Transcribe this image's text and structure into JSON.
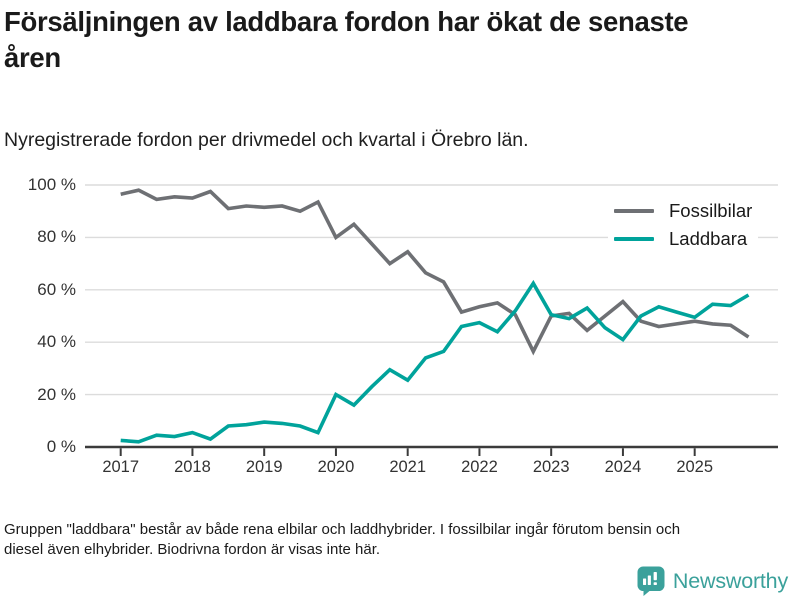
{
  "header": {
    "title": "Försäljningen av laddbara fordon har ökat de senaste åren",
    "subtitle": "Nyregistrerade fordon per drivmedel och kvartal i Örebro län."
  },
  "legend": [
    {
      "label": "Fossilbilar",
      "color": "#6e7074"
    },
    {
      "label": "Laddbara",
      "color": "#00a39b"
    }
  ],
  "footer": {
    "note": "Gruppen \"laddbara\" består av både rena elbilar och laddhybrider. I fossilbilar ingår förutom bensin och diesel även elhybrider. Biodrivna fordon är visas inte här."
  },
  "branding": {
    "name": "Newsworthy",
    "color": "#3ba19b",
    "logo_icon": "bar-chart-speech-bubble"
  },
  "chart_data": {
    "type": "line",
    "title": "Nyregistrerade fordon per drivmedel och kvartal i Örebro län",
    "x_unit": "quarter",
    "x": [
      "2017 Q1",
      "2017 Q2",
      "2017 Q3",
      "2017 Q4",
      "2018 Q1",
      "2018 Q2",
      "2018 Q3",
      "2018 Q4",
      "2019 Q1",
      "2019 Q2",
      "2019 Q3",
      "2019 Q4",
      "2020 Q1",
      "2020 Q2",
      "2020 Q3",
      "2020 Q4",
      "2021 Q1",
      "2021 Q2",
      "2021 Q3",
      "2021 Q4",
      "2022 Q1",
      "2022 Q2",
      "2022 Q3",
      "2022 Q4",
      "2023 Q1",
      "2023 Q2",
      "2023 Q3",
      "2023 Q4",
      "2024 Q1",
      "2024 Q2",
      "2024 Q3",
      "2024 Q4",
      "2025 Q1",
      "2025 Q2",
      "2025 Q3",
      "2025 Q4"
    ],
    "x_tick_labels": [
      "2017",
      "2018",
      "2019",
      "2020",
      "2021",
      "2022",
      "2023",
      "2024",
      "2025"
    ],
    "y_ticks": [
      0,
      20,
      40,
      60,
      80,
      100
    ],
    "y_tick_labels": [
      "0 %",
      "20 %",
      "40 %",
      "60 %",
      "80 %",
      "100 %"
    ],
    "ylim": [
      0,
      100
    ],
    "grid": "horizontal",
    "legend_position": "top-right-inside",
    "series": [
      {
        "name": "Fossilbilar",
        "color": "#6e7074",
        "values": [
          96.5,
          98,
          94.5,
          95.5,
          95,
          97.5,
          91,
          92,
          91.5,
          92,
          90,
          93.5,
          80,
          85,
          77.5,
          70,
          74.5,
          66.5,
          63,
          51.5,
          53.5,
          55,
          50.5,
          36.5,
          50,
          51,
          44.5,
          50,
          55.5,
          48,
          46,
          47,
          48,
          47,
          46.5,
          42
        ]
      },
      {
        "name": "Laddbara",
        "color": "#00a39b",
        "values": [
          2.5,
          2,
          4.5,
          4,
          5.5,
          3,
          8,
          8.5,
          9.5,
          9,
          8,
          5.5,
          20,
          16,
          23,
          29.5,
          25.5,
          34,
          36.5,
          46,
          47.5,
          44,
          52,
          62.5,
          50.5,
          49,
          53,
          45.5,
          41,
          50,
          53.5,
          51.5,
          49.5,
          54.5,
          54,
          58
        ]
      }
    ]
  }
}
